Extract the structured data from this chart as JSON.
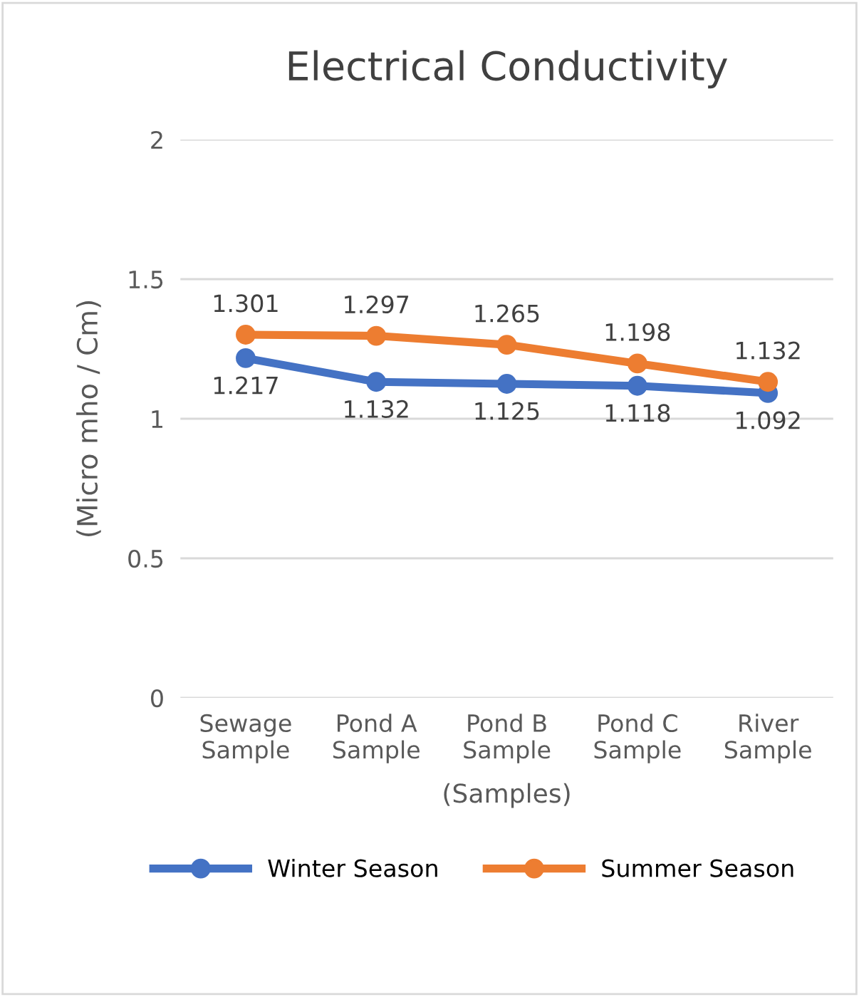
{
  "chart_data": {
    "type": "line",
    "title": "Electrical Conductivity",
    "xlabel": "(Samples)",
    "ylabel": "(Micro mho / Cm)",
    "categories": [
      "Sewage\nSample",
      "Pond A\nSample",
      "Pond B\nSample",
      "Pond C\nSample",
      "River\nSample"
    ],
    "series": [
      {
        "name": "Winter Season",
        "color": "#4472c4",
        "values": [
          1.217,
          1.132,
          1.125,
          1.118,
          1.092
        ]
      },
      {
        "name": "Summer Season",
        "color": "#ed7d31",
        "values": [
          1.301,
          1.297,
          1.265,
          1.198,
          1.132
        ]
      }
    ],
    "ylim": [
      0,
      2
    ],
    "yticks": [
      0,
      0.5,
      1,
      1.5,
      2
    ],
    "grid": "y",
    "legend": "bottom",
    "marker": "circle",
    "line_style": "solid",
    "data_labels": true
  }
}
